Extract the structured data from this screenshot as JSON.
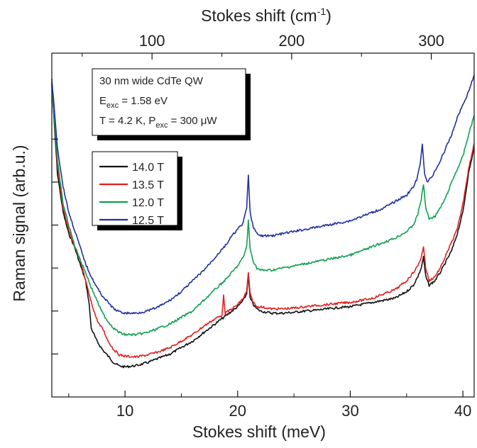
{
  "chart_data": {
    "type": "line",
    "xlabel": "Stokes shift (meV)",
    "x2label": "Stokes shift (cm",
    "x2label_sup": "-1",
    "x2label_close": ")",
    "ylabel": "Raman signal (arb.u.)",
    "xlim": [
      3.5,
      41
    ],
    "x_ticks": [
      10,
      20,
      30,
      40
    ],
    "x_tick_labels": [
      "10",
      "20",
      "30",
      "40"
    ],
    "x2_ticks": [
      100,
      200,
      300
    ],
    "x2_tick_labels": [
      "100",
      "200",
      "300"
    ],
    "y_ticks_arb": [
      1,
      2,
      3,
      4,
      5,
      6
    ],
    "ylim": [
      0,
      8
    ],
    "info_box": {
      "line1": "30 nm wide CdTe QW",
      "line2_main": "E",
      "line2_sub": "exc",
      "line2_rest": " = 1.58 eV",
      "line3_a": "T = 4.2 K, P",
      "line3_sub": "exc",
      "line3_rest": " = 300 ",
      "line3_unit": "μW"
    },
    "legend": {
      "placement": "upper-left"
    },
    "series": [
      {
        "name": "14.0 T",
        "color": "#111111",
        "x": [
          3.5,
          4.0,
          4.5,
          5.0,
          5.5,
          6.0,
          6.5,
          6.8,
          7.0,
          7.5,
          8.0,
          8.5,
          9.0,
          9.5,
          10.0,
          11.0,
          12.0,
          13.0,
          14.0,
          15.0,
          16.0,
          17.0,
          18.0,
          19.0,
          19.5,
          20.0,
          20.5,
          20.8,
          20.95,
          21.1,
          21.4,
          21.7,
          22.0,
          23.0,
          24.0,
          25.0,
          26.0,
          27.0,
          28.0,
          29.0,
          30.0,
          31.0,
          32.0,
          33.0,
          34.0,
          35.0,
          35.6,
          36.0,
          36.3,
          36.5,
          36.7,
          37.0,
          37.5,
          38.0,
          38.5,
          39.0,
          39.5,
          40.0,
          40.5,
          41.0
        ],
        "y": [
          7.25,
          5.2,
          4.3,
          3.8,
          3.5,
          3.1,
          2.7,
          2.2,
          1.6,
          1.3,
          1.1,
          0.95,
          0.8,
          0.72,
          0.7,
          0.73,
          0.8,
          0.9,
          1.0,
          1.15,
          1.3,
          1.5,
          1.7,
          1.9,
          2.0,
          2.1,
          2.25,
          2.4,
          2.85,
          2.3,
          2.15,
          2.05,
          2.0,
          1.95,
          1.95,
          1.97,
          2.0,
          2.02,
          2.05,
          2.08,
          2.1,
          2.15,
          2.2,
          2.25,
          2.3,
          2.45,
          2.6,
          2.8,
          3.0,
          3.25,
          2.8,
          2.6,
          2.7,
          2.9,
          3.15,
          3.4,
          3.8,
          4.3,
          5.2,
          5.8
        ]
      },
      {
        "name": "13.5 T",
        "color": "#e02020",
        "x": [
          3.5,
          4.0,
          4.5,
          5.0,
          5.5,
          6.0,
          6.5,
          7.0,
          7.5,
          7.8,
          8.0,
          8.5,
          9.0,
          9.5,
          10.0,
          11.0,
          12.0,
          13.0,
          14.0,
          15.0,
          16.0,
          17.0,
          18.0,
          18.6,
          18.75,
          18.9,
          19.5,
          20.0,
          20.5,
          20.8,
          20.95,
          21.1,
          21.4,
          21.7,
          22.0,
          23.0,
          24.0,
          25.0,
          26.0,
          27.0,
          28.0,
          29.0,
          30.0,
          31.0,
          32.0,
          33.0,
          34.0,
          35.0,
          35.6,
          36.0,
          36.3,
          36.5,
          36.7,
          37.0,
          37.5,
          38.0,
          38.5,
          39.0,
          39.5,
          40.0,
          40.5,
          41.0
        ],
        "y": [
          7.3,
          5.4,
          4.4,
          3.9,
          3.5,
          3.2,
          2.7,
          2.2,
          1.8,
          1.65,
          1.6,
          1.3,
          1.1,
          0.98,
          0.95,
          0.93,
          0.98,
          1.05,
          1.15,
          1.3,
          1.45,
          1.65,
          1.82,
          1.9,
          2.35,
          1.95,
          2.05,
          2.15,
          2.3,
          2.45,
          2.9,
          2.4,
          2.2,
          2.1,
          2.1,
          2.05,
          2.05,
          2.07,
          2.1,
          2.13,
          2.15,
          2.18,
          2.2,
          2.25,
          2.3,
          2.4,
          2.5,
          2.7,
          2.9,
          3.05,
          3.25,
          3.5,
          3.0,
          2.7,
          2.8,
          3.0,
          3.3,
          3.6,
          3.9,
          4.5,
          5.3,
          5.9
        ]
      },
      {
        "name": "12.0 T",
        "color": "#10a050",
        "x": [
          3.5,
          4.0,
          4.5,
          5.0,
          5.5,
          6.0,
          6.5,
          7.0,
          7.5,
          8.0,
          8.5,
          9.0,
          9.5,
          10.0,
          11.0,
          12.0,
          13.0,
          14.0,
          15.0,
          16.0,
          17.0,
          18.0,
          19.0,
          19.5,
          20.0,
          20.5,
          20.8,
          20.95,
          21.1,
          21.4,
          21.7,
          22.0,
          23.0,
          24.0,
          25.0,
          26.0,
          27.0,
          28.0,
          29.0,
          30.0,
          31.0,
          32.0,
          33.0,
          34.0,
          35.0,
          35.6,
          36.0,
          36.3,
          36.5,
          36.7,
          37.0,
          37.5,
          38.0,
          38.5,
          39.0,
          39.5,
          40.0,
          40.5,
          41.0
        ],
        "y": [
          7.3,
          5.5,
          4.5,
          4.0,
          3.55,
          3.2,
          2.9,
          2.55,
          2.25,
          1.95,
          1.75,
          1.6,
          1.5,
          1.45,
          1.45,
          1.5,
          1.6,
          1.7,
          1.85,
          2.0,
          2.25,
          2.5,
          2.75,
          2.9,
          3.05,
          3.25,
          3.5,
          4.1,
          3.45,
          3.15,
          3.0,
          2.95,
          2.95,
          3.0,
          3.05,
          3.1,
          3.15,
          3.2,
          3.25,
          3.3,
          3.4,
          3.5,
          3.6,
          3.7,
          3.85,
          4.0,
          4.25,
          4.6,
          4.95,
          4.4,
          4.15,
          4.2,
          4.4,
          4.65,
          5.0,
          5.3,
          5.6,
          6.1,
          6.55
        ]
      },
      {
        "name": "12.5 T",
        "color": "#2030a0",
        "x": [
          3.5,
          4.0,
          4.5,
          5.0,
          5.5,
          6.0,
          6.5,
          7.0,
          7.5,
          8.0,
          8.5,
          9.0,
          9.5,
          10.0,
          11.0,
          12.0,
          13.0,
          14.0,
          15.0,
          16.0,
          17.0,
          18.0,
          19.0,
          19.5,
          20.0,
          20.5,
          20.8,
          20.95,
          21.1,
          21.4,
          21.7,
          22.0,
          23.0,
          24.0,
          25.0,
          26.0,
          27.0,
          28.0,
          29.0,
          30.0,
          31.0,
          32.0,
          33.0,
          34.0,
          35.0,
          35.5,
          35.9,
          36.2,
          36.4,
          36.6,
          36.8,
          37.2,
          37.6,
          38.0,
          38.5,
          39.0,
          39.5,
          40.0,
          40.5,
          41.0
        ],
        "y": [
          7.4,
          5.8,
          4.9,
          4.3,
          3.9,
          3.5,
          3.1,
          2.8,
          2.55,
          2.35,
          2.2,
          2.05,
          1.98,
          1.95,
          1.95,
          2.0,
          2.1,
          2.25,
          2.45,
          2.7,
          2.95,
          3.25,
          3.55,
          3.75,
          3.9,
          4.05,
          4.4,
          5.15,
          4.3,
          3.95,
          3.8,
          3.75,
          3.75,
          3.8,
          3.85,
          3.9,
          3.95,
          4.0,
          4.05,
          4.1,
          4.2,
          4.3,
          4.4,
          4.55,
          4.7,
          4.85,
          5.05,
          5.4,
          5.9,
          5.2,
          5.0,
          5.1,
          5.3,
          5.5,
          5.8,
          6.1,
          6.5,
          6.8,
          7.1,
          7.5
        ]
      }
    ]
  }
}
